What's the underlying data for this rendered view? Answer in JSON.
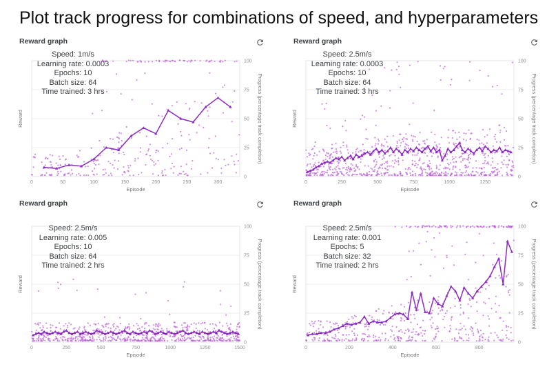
{
  "page_title": "Plot track progress for combinations of speed, and hyperparameters",
  "colors": {
    "line": "#8b2bc2",
    "scatter": "#b95fd6",
    "grid": "#ecedf1",
    "border": "#e2e5e9"
  },
  "chart_data": [
    {
      "type": "scatter",
      "title": "Reward graph",
      "refresh_icon": "refresh",
      "xlabel": "Episode",
      "ylabel_left": "Reward",
      "ylabel_right": "Progress (percentage track completion)",
      "annotations": [
        "Speed: 1m/s",
        "Learning rate: 0.0003",
        "Epochs: 10",
        "Batch size: 64",
        "Time trained: 3 hrs"
      ],
      "x_ticks": [
        0,
        50,
        100,
        150,
        200,
        250,
        300
      ],
      "x_max": 335,
      "y_ticks": [
        0,
        25,
        50,
        75,
        100
      ],
      "y_max": 100,
      "legend": "off",
      "grid": "on",
      "line": {
        "name": "mean progress",
        "x0": 20,
        "dx": 20,
        "values": [
          8,
          7,
          10,
          9,
          15,
          25,
          23,
          35,
          42,
          37,
          57,
          50,
          47,
          60,
          68,
          60
        ]
      },
      "scatter": {
        "seed": 11,
        "n": 240,
        "low": 1,
        "low_spread": 20,
        "grow_from": 60,
        "grow_max": 85,
        "power": 1.8,
        "high_n": 18,
        "high_min": 40,
        "high_max": 92,
        "high_from": 0.25,
        "top_row": {
          "from_frac": 0.32,
          "n": 60
        }
      }
    },
    {
      "type": "scatter",
      "title": "Reward graph",
      "refresh_icon": "refresh",
      "xlabel": "Episode",
      "ylabel_left": "Reward",
      "ylabel_right": "Progress (percentage track completion)",
      "annotations": [
        "Speed: 2.5m/s",
        "Learning rate: 0.0003",
        "Epochs: 10",
        "Batch size: 64",
        "Time trained: 3 hrs"
      ],
      "x_ticks": [
        0,
        250,
        500,
        750,
        1000,
        1250
      ],
      "x_max": 1450,
      "y_ticks": [
        0,
        25,
        50,
        75,
        100
      ],
      "y_max": 100,
      "legend": "off",
      "grid": "on",
      "line": {
        "name": "mean progress",
        "x0": 10,
        "dx": 20,
        "values": [
          4,
          5,
          6,
          8,
          9,
          11,
          12,
          13,
          12,
          14,
          16,
          15,
          17,
          14,
          16,
          18,
          15,
          19,
          17,
          18,
          20,
          21,
          19,
          22,
          24,
          21,
          23,
          20,
          22,
          25,
          21,
          24,
          22,
          19,
          23,
          21,
          24,
          22,
          25,
          23,
          21,
          24,
          26,
          22,
          25,
          21,
          23,
          14,
          18,
          24,
          21,
          23,
          26,
          29,
          23,
          21,
          24,
          22,
          20,
          23,
          25,
          22,
          26,
          24,
          21,
          23,
          22,
          25,
          21,
          23,
          22,
          21
        ]
      },
      "scatter": {
        "seed": 22,
        "n": 780,
        "low": 1,
        "low_spread": 28,
        "grow_from": 0,
        "grow_max": 45,
        "power": 2.2,
        "high_n": 50,
        "high_min": 35,
        "high_max": 100,
        "high_from": 0.05,
        "top_row": null
      }
    },
    {
      "type": "scatter",
      "title": "Reward graph",
      "refresh_icon": "refresh",
      "xlabel": "Episode",
      "ylabel_left": "Reward",
      "ylabel_right": "Progress (percentage track completion)",
      "annotations": [
        "Speed: 2.5m/s",
        "Learning rate: 0.005",
        "Epochs: 10",
        "Batch size: 64",
        "Time trained: 2 hrs"
      ],
      "x_ticks": [
        0,
        250,
        500,
        750,
        1000,
        1250,
        1500
      ],
      "x_max": 1500,
      "y_ticks": [
        0,
        25,
        50,
        75,
        100
      ],
      "y_max": 100,
      "legend": "off",
      "grid": "on",
      "line": {
        "name": "mean progress",
        "x0": 10,
        "dx": 20,
        "values": [
          6,
          7,
          8,
          7,
          9,
          8,
          7,
          8,
          9,
          8,
          7,
          9,
          10,
          8,
          7,
          8,
          9,
          7,
          8,
          9,
          8,
          7,
          8,
          10,
          9,
          8,
          7,
          8,
          9,
          8,
          7,
          8,
          9,
          10,
          8,
          7,
          9,
          8,
          7,
          8,
          9,
          8,
          10,
          9,
          7,
          8,
          9,
          8,
          7,
          9,
          8,
          7,
          8,
          9,
          10,
          8,
          7,
          8,
          9,
          8,
          7,
          9,
          8,
          7,
          8,
          9,
          8,
          10,
          9,
          8,
          7,
          8,
          9,
          8,
          7
        ]
      },
      "scatter": {
        "seed": 33,
        "n": 680,
        "low": 1,
        "low_spread": 16,
        "grow_from": 0,
        "grow_max": 16,
        "power": 2.2,
        "high_n": 20,
        "high_min": 20,
        "high_max": 55,
        "high_from": 0.02,
        "top_row": null
      }
    },
    {
      "type": "scatter",
      "title": "Reward graph",
      "refresh_icon": "refresh",
      "xlabel": "Episode",
      "ylabel_left": "Reward",
      "ylabel_right": "Progress (percentage track completion)",
      "annotations": [
        "Speed: 2.5m/s",
        "Learning rate: 0.001",
        "Epochs: 5",
        "Batch size: 32",
        "Time trained: 2 hrs"
      ],
      "x_ticks": [
        0,
        200,
        400,
        600,
        800
      ],
      "x_max": 960,
      "y_ticks": [
        0,
        25,
        50,
        75,
        100
      ],
      "y_max": 100,
      "legend": "off",
      "grid": "on",
      "line": {
        "name": "mean progress",
        "x0": 10,
        "dx": 20,
        "values": [
          6,
          7,
          7,
          8,
          8,
          9,
          11,
          12,
          14,
          16,
          15,
          16,
          17,
          22,
          16,
          18,
          17,
          17,
          18,
          21,
          24,
          25,
          24,
          20,
          43,
          28,
          42,
          26,
          25,
          38,
          33,
          31,
          40,
          48,
          44,
          36,
          47,
          42,
          38,
          44,
          48,
          52,
          57,
          65,
          72,
          50,
          87,
          78
        ]
      },
      "scatter": {
        "seed": 44,
        "n": 430,
        "low": 1,
        "low_spread": 18,
        "grow_from": 150,
        "grow_max": 60,
        "power": 1.9,
        "high_n": 30,
        "high_min": 50,
        "high_max": 97,
        "high_from": 0.45,
        "top_row": {
          "from_frac": 0.4,
          "n": 90
        }
      }
    }
  ]
}
